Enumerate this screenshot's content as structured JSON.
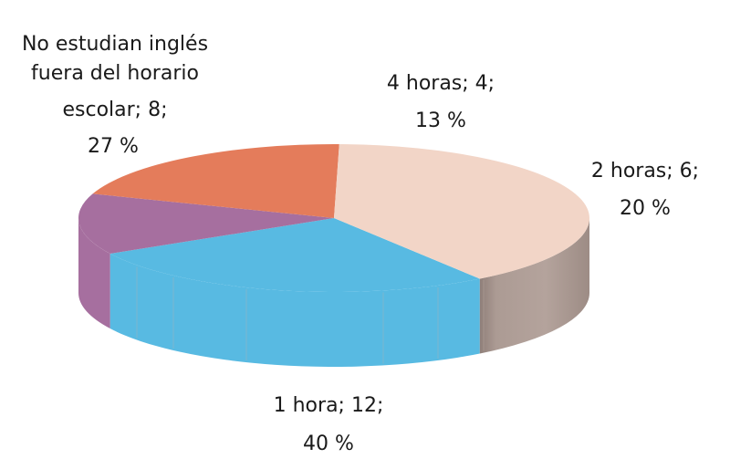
{
  "chart_data": {
    "type": "pie",
    "style": "3d",
    "slices": [
      {
        "label": "No estudian inglés fuera del horario escolar",
        "value": 8,
        "percent": "27 %",
        "color": "#58bae2"
      },
      {
        "label": "4 horas",
        "value": 4,
        "percent": "13 %",
        "color": "#a66f9f"
      },
      {
        "label": "2 horas",
        "value": 6,
        "percent": "20 %",
        "color": "#e47c5b"
      },
      {
        "label": "1 hora",
        "value": 12,
        "percent": "40 %",
        "color": "#f2d5c7"
      }
    ],
    "data_labels": [
      {
        "lines": [
          "No estudian inglés",
          "fuera del horario",
          "escolar; 8;",
          "27 %"
        ]
      },
      {
        "lines": [
          "4 horas; 4;",
          "13 %"
        ]
      },
      {
        "lines": [
          "2 horas; 6;",
          "20 %"
        ]
      },
      {
        "lines": [
          "1 hora; 12;",
          "40 %"
        ]
      }
    ],
    "side_colors": {
      "1 hora": "#aa9992",
      "2 horas": "#944d38"
    }
  }
}
